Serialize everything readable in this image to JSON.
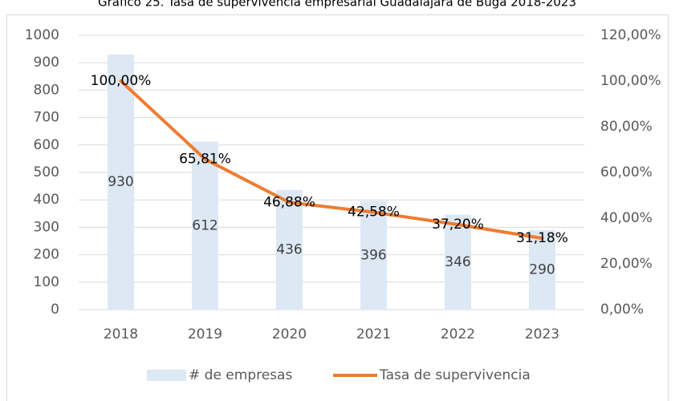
{
  "chart_data": {
    "type": "bar",
    "title": "Gráfico 25. Tasa de supervivencia empresarial Guadalajara de Buga 2018-2023",
    "categories": [
      "2018",
      "2019",
      "2020",
      "2021",
      "2022",
      "2023"
    ],
    "series": [
      {
        "name": "# de empresas",
        "type": "bar",
        "color": "#dde8f5",
        "values": [
          930,
          612,
          436,
          396,
          346,
          290
        ]
      },
      {
        "name": "Tasa de supervivencia",
        "type": "line",
        "axis": "y2",
        "color": "#ed7d31",
        "values": [
          100,
          65.81,
          46.88,
          42.58,
          37.2,
          31.18
        ],
        "value_labels": [
          "100,00%",
          "65,81%",
          "46,88%",
          "42,58%",
          "37,20%",
          "31,18%"
        ]
      }
    ],
    "ylim": [
      0,
      1000
    ],
    "yticks": [
      0,
      100,
      200,
      300,
      400,
      500,
      600,
      700,
      800,
      900,
      1000
    ],
    "y2lim": [
      0,
      120
    ],
    "y2ticks": [
      {
        "value": 0,
        "label": "0,00%"
      },
      {
        "value": 20,
        "label": "20,00%"
      },
      {
        "value": 40,
        "label": "40,00%"
      },
      {
        "value": 60,
        "label": "60,00%"
      },
      {
        "value": 80,
        "label": "80,00%"
      },
      {
        "value": 100,
        "label": "100,00%"
      },
      {
        "value": 120,
        "label": "120,00%"
      }
    ],
    "grid": true,
    "legend": "bottom"
  }
}
